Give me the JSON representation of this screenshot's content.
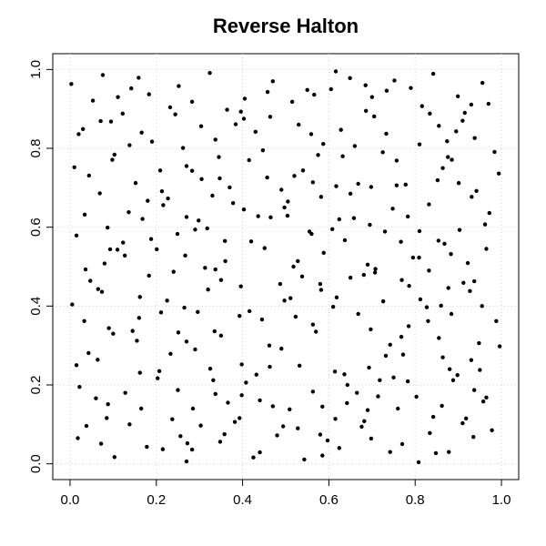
{
  "chart_data": {
    "type": "scatter",
    "title": "Reverse Halton",
    "xlim": [
      -0.04,
      1.04
    ],
    "ylim": [
      -0.04,
      1.04
    ],
    "xticks": [
      {
        "value": 0,
        "label": "0.0"
      },
      0.2,
      0.4,
      0.6,
      0.8,
      {
        "value": 1,
        "label": "1.0"
      }
    ],
    "yticks": [
      {
        "value": 0,
        "label": "0.0"
      },
      0.2,
      0.4,
      0.6,
      0.8,
      {
        "value": 1,
        "label": "1.0"
      }
    ],
    "grid": true,
    "color": "#000000",
    "x": [
      0.003,
      0.076,
      0.159,
      0.324,
      0.616,
      0.649,
      0.685,
      0.752,
      0.79,
      0.842,
      0.956,
      0.053,
      0.111,
      0.142,
      0.252,
      0.183,
      0.232,
      0.244,
      0.283,
      0.364,
      0.396,
      0.405,
      0.458,
      0.47,
      0.515,
      0.55,
      0.566,
      0.605,
      0.7,
      0.734,
      0.816,
      0.915,
      0.93,
      0.899,
      0.97,
      0.122,
      0.095,
      0.02,
      0.03,
      0.071,
      0.138,
      0.166,
      0.19,
      0.304,
      0.337,
      0.384,
      0.403,
      0.43,
      0.447,
      0.464,
      0.53,
      0.559,
      0.587,
      0.628,
      0.66,
      0.686,
      0.705,
      0.733,
      0.81,
      0.834,
      0.855,
      0.874,
      0.895,
      0.91,
      0.938,
      0.984,
      0.262,
      0.345,
      0.415,
      0.575,
      0.632,
      0.876,
      0.01,
      0.044,
      0.098,
      0.103,
      0.209,
      0.27,
      0.283,
      0.305,
      0.33,
      0.347,
      0.37,
      0.378,
      0.457,
      0.49,
      0.505,
      0.52,
      0.54,
      0.563,
      0.582,
      0.617,
      0.65,
      0.668,
      0.698,
      0.725,
      0.778,
      0.757,
      0.852,
      0.864,
      0.885,
      0.901,
      0.931,
      0.942,
      0.994,
      0.152,
      0.069,
      0.18,
      0.213,
      0.227,
      0.29,
      0.034,
      0.015,
      0.087,
      0.136,
      0.168,
      0.216,
      0.27,
      0.298,
      0.318,
      0.403,
      0.436,
      0.465,
      0.504,
      0.497,
      0.555,
      0.608,
      0.624,
      0.658,
      0.695,
      0.748,
      0.783,
      0.81,
      0.903,
      0.962,
      0.972,
      0.965,
      0.832,
      0.757,
      0.047,
      0.036,
      0.093,
      0.11,
      0.123,
      0.127,
      0.188,
      0.201,
      0.267,
      0.359,
      0.36,
      0.42,
      0.451,
      0.518,
      0.528,
      0.56,
      0.588,
      0.637,
      0.69,
      0.708,
      0.73,
      0.767,
      0.795,
      0.832,
      0.854,
      0.883,
      0.868,
      0.922,
      0.08,
      0.249,
      0.005,
      0.065,
      0.074,
      0.162,
      0.183,
      0.225,
      0.24,
      0.265,
      0.313,
      0.337,
      0.32,
      0.35,
      0.396,
      0.416,
      0.487,
      0.497,
      0.511,
      0.538,
      0.582,
      0.58,
      0.618,
      0.65,
      0.681,
      0.707,
      0.726,
      0.769,
      0.786,
      0.809,
      0.812,
      0.86,
      0.877,
      0.912,
      0.927,
      0.937,
      0.955,
      0.296,
      0.033,
      0.09,
      0.1,
      0.145,
      0.155,
      0.16,
      0.211,
      0.233,
      0.251,
      0.27,
      0.335,
      0.35,
      0.445,
      0.393,
      0.462,
      0.523,
      0.563,
      0.57,
      0.61,
      0.668,
      0.697,
      0.732,
      0.742,
      0.768,
      0.785,
      0.83,
      0.884,
      0.827,
      0.948,
      0.988,
      0.996,
      0.855,
      0.772,
      0.015,
      0.043,
      0.064,
      0.162,
      0.203,
      0.207,
      0.25,
      0.29,
      0.325,
      0.332,
      0.398,
      0.408,
      0.432,
      0.463,
      0.49,
      0.532,
      0.585,
      0.614,
      0.636,
      0.643,
      0.693,
      0.718,
      0.75,
      0.783,
      0.864,
      0.888,
      0.88,
      0.898,
      0.93,
      0.95,
      0.937,
      0.965,
      0.022,
      0.285,
      0.06,
      0.088,
      0.128,
      0.138,
      0.165,
      0.237,
      0.272,
      0.303,
      0.337,
      0.366,
      0.382,
      0.393,
      0.398,
      0.44,
      0.47,
      0.509,
      0.563,
      0.615,
      0.642,
      0.665,
      0.682,
      0.69,
      0.714,
      0.76,
      0.803,
      0.842,
      0.862,
      0.918,
      0.91,
      0.958,
      0.038,
      0.085,
      0.018,
      0.072,
      0.103,
      0.178,
      0.215,
      0.256,
      0.27,
      0.283,
      0.348,
      0.358,
      0.425,
      0.44,
      0.494,
      0.48,
      0.528,
      0.543,
      0.58,
      0.597,
      0.585,
      0.624,
      0.676,
      0.698,
      0.742,
      0.77,
      0.808,
      0.834,
      0.848,
      0.878,
      0.935,
      0.978
    ],
    "values": [
      0.963,
      0.986,
      0.979,
      0.991,
      0.995,
      0.978,
      0.96,
      0.972,
      0.953,
      0.989,
      0.966,
      0.921,
      0.93,
      0.952,
      0.958,
      0.937,
      0.904,
      0.886,
      0.918,
      0.898,
      0.893,
      0.926,
      0.943,
      0.97,
      0.918,
      0.948,
      0.936,
      0.95,
      0.93,
      0.946,
      0.907,
      0.89,
      0.911,
      0.932,
      0.913,
      0.888,
      0.868,
      0.836,
      0.849,
      0.869,
      0.808,
      0.84,
      0.817,
      0.856,
      0.822,
      0.861,
      0.875,
      0.842,
      0.795,
      0.88,
      0.86,
      0.836,
      0.811,
      0.847,
      0.806,
      0.895,
      0.881,
      0.837,
      0.81,
      0.888,
      0.857,
      0.818,
      0.843,
      0.87,
      0.826,
      0.791,
      0.801,
      0.778,
      0.77,
      0.783,
      0.78,
      0.778,
      0.752,
      0.731,
      0.771,
      0.784,
      0.744,
      0.755,
      0.743,
      0.722,
      0.68,
      0.724,
      0.701,
      0.661,
      0.726,
      0.695,
      0.665,
      0.73,
      0.744,
      0.714,
      0.677,
      0.704,
      0.685,
      0.71,
      0.702,
      0.79,
      0.708,
      0.769,
      0.719,
      0.75,
      0.771,
      0.712,
      0.677,
      0.692,
      0.736,
      0.712,
      0.686,
      0.667,
      0.691,
      0.673,
      0.594,
      0.632,
      0.579,
      0.599,
      0.638,
      0.621,
      0.656,
      0.626,
      0.617,
      0.597,
      0.645,
      0.628,
      0.625,
      0.629,
      0.65,
      0.589,
      0.595,
      0.62,
      0.623,
      0.606,
      0.647,
      0.627,
      0.59,
      0.593,
      0.607,
      0.636,
      0.545,
      0.658,
      0.706,
      0.464,
      0.493,
      0.544,
      0.543,
      0.561,
      0.528,
      0.57,
      0.544,
      0.528,
      0.565,
      0.514,
      0.564,
      0.547,
      0.5,
      0.514,
      0.583,
      0.535,
      0.567,
      0.505,
      0.494,
      0.589,
      0.563,
      0.523,
      0.49,
      0.566,
      0.532,
      0.558,
      0.509,
      0.508,
      0.583,
      0.404,
      0.443,
      0.436,
      0.423,
      0.477,
      0.414,
      0.487,
      0.396,
      0.497,
      0.493,
      0.442,
      0.466,
      0.45,
      0.387,
      0.456,
      0.414,
      0.42,
      0.475,
      0.441,
      0.456,
      0.422,
      0.472,
      0.479,
      0.485,
      0.412,
      0.466,
      0.451,
      0.523,
      0.417,
      0.401,
      0.446,
      0.459,
      0.438,
      0.463,
      0.4,
      0.385,
      0.362,
      0.344,
      0.33,
      0.337,
      0.312,
      0.37,
      0.384,
      0.279,
      0.333,
      0.31,
      0.336,
      0.325,
      0.366,
      0.375,
      0.3,
      0.373,
      0.353,
      0.335,
      0.398,
      0.38,
      0.341,
      0.274,
      0.302,
      0.322,
      0.349,
      0.362,
      0.38,
      0.397,
      0.306,
      0.362,
      0.298,
      0.319,
      0.277,
      0.25,
      0.281,
      0.264,
      0.231,
      0.217,
      0.235,
      0.187,
      0.29,
      0.241,
      0.212,
      0.252,
      0.206,
      0.226,
      0.246,
      0.292,
      0.249,
      0.145,
      0.234,
      0.227,
      0.2,
      0.244,
      0.212,
      0.219,
      0.209,
      0.27,
      0.212,
      0.24,
      0.225,
      0.263,
      0.238,
      0.187,
      0.168,
      0.195,
      0.14,
      0.166,
      0.151,
      0.18,
      0.1,
      0.14,
      0.113,
      0.052,
      0.097,
      0.177,
      0.155,
      0.106,
      0.116,
      0.174,
      0.161,
      0.146,
      0.138,
      0.183,
      0.114,
      0.154,
      0.18,
      0.108,
      0.136,
      0.171,
      0.14,
      0.17,
      0.119,
      0.147,
      0.115,
      0.103,
      0.158,
      0.096,
      0.116,
      0.065,
      0.051,
      0.017,
      0.043,
      0.037,
      0.07,
      0.006,
      0.036,
      0.056,
      0.075,
      0.016,
      0.029,
      0.095,
      0.072,
      0.09,
      0.011,
      0.074,
      0.059,
      0.021,
      0.04,
      0.094,
      0.064,
      0.03,
      0.05,
      0.004,
      0.078,
      0.027,
      0.03,
      0.068,
      0.085
    ]
  }
}
